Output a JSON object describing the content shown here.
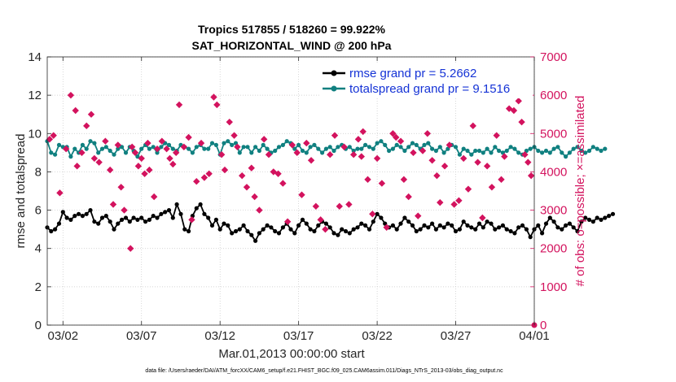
{
  "chart_data": {
    "type": "line",
    "title": "Tropics 517855 / 518260 = 99.922%",
    "subtitle": "SAT_HORIZONTAL_WIND @ 200 hPa",
    "xlabel": "Mar.01,2013 00:00:00 start",
    "ylabel": "rmse and totalspread",
    "ylabel_right": "# of obs: o=possible; ×=assimilated",
    "footnote": "data file: /Users/raeder/DAI/ATM_forcXX/CAM6_setup/f.e21.FHIST_BGC.f09_025.CAM6assim.011/Diags_NTrS_2013-03/obs_diag_output.nc",
    "xlim": [
      0,
      31
    ],
    "ylim": [
      0,
      14
    ],
    "ylim_right": [
      0,
      7000
    ],
    "x_ticks": [
      1,
      6,
      11,
      16,
      21,
      26,
      31
    ],
    "x_tick_labels": [
      "03/02",
      "03/07",
      "03/12",
      "03/17",
      "03/22",
      "03/27",
      "04/01"
    ],
    "y_ticks": [
      0,
      2,
      4,
      6,
      8,
      10,
      12,
      14
    ],
    "y_ticks_right": [
      0,
      1000,
      2000,
      3000,
      4000,
      5000,
      6000,
      7000
    ],
    "step_days": 0.25,
    "series": [
      {
        "name": "rmse grand pr = 5.2662",
        "color": "#000000",
        "axis": "left",
        "values": [
          5.1,
          4.9,
          5.0,
          5.3,
          5.9,
          5.6,
          5.5,
          5.7,
          5.8,
          5.7,
          5.8,
          6.0,
          5.4,
          5.3,
          5.6,
          5.7,
          5.4,
          5.0,
          5.3,
          5.5,
          5.6,
          5.4,
          5.6,
          5.5,
          5.6,
          5.4,
          5.5,
          5.7,
          5.6,
          5.8,
          5.9,
          6.0,
          5.6,
          6.3,
          5.8,
          5.0,
          4.9,
          5.7,
          6.1,
          6.3,
          5.8,
          5.6,
          5.2,
          5.5,
          5.0,
          5.3,
          5.2,
          4.8,
          4.9,
          5.0,
          5.2,
          4.9,
          4.7,
          4.4,
          4.8,
          5.0,
          5.2,
          5.1,
          4.9,
          4.8,
          5.1,
          5.3,
          5.0,
          4.8,
          5.2,
          5.5,
          5.3,
          5.0,
          4.9,
          5.2,
          5.4,
          5.3,
          5.1,
          4.8,
          4.7,
          5.0,
          4.9,
          4.8,
          5.0,
          5.1,
          5.3,
          5.2,
          5.0,
          5.4,
          5.8,
          5.6,
          5.3,
          5.1,
          5.2,
          5.0,
          5.3,
          5.6,
          5.4,
          5.2,
          4.9,
          5.0,
          5.2,
          5.1,
          5.3,
          5.0,
          5.2,
          5.1,
          5.3,
          5.2,
          4.9,
          5.0,
          5.4,
          5.2,
          5.1,
          5.0,
          5.3,
          5.1,
          5.4,
          5.3,
          5.0,
          5.1,
          5.2,
          5.0,
          4.9,
          4.8,
          5.1,
          5.2,
          5.0,
          4.6,
          5.0,
          5.2,
          4.8,
          5.3,
          5.6,
          5.4,
          5.1,
          5.0,
          5.2,
          5.3,
          5.1,
          4.9,
          5.4,
          5.6,
          5.5,
          5.4,
          5.6,
          5.5,
          5.6,
          5.7,
          5.8
        ]
      },
      {
        "name": "totalspread grand pr = 9.1516",
        "color": "#108080",
        "axis": "left",
        "values": [
          9.6,
          9.0,
          8.9,
          9.4,
          9.3,
          9.3,
          8.8,
          9.2,
          9.0,
          9.4,
          9.2,
          9.6,
          9.5,
          9.0,
          9.2,
          9.3,
          9.1,
          8.9,
          9.2,
          9.3,
          9.0,
          9.3,
          9.1,
          8.8,
          9.2,
          9.4,
          9.2,
          9.3,
          9.0,
          9.3,
          9.5,
          9.4,
          9.2,
          9.1,
          9.4,
          9.3,
          9.2,
          9.0,
          9.3,
          9.4,
          9.2,
          9.2,
          9.5,
          9.4,
          8.9,
          9.5,
          9.6,
          9.4,
          9.5,
          9.0,
          9.3,
          9.3,
          9.0,
          9.3,
          9.1,
          9.4,
          9.2,
          9.0,
          9.1,
          9.3,
          9.4,
          9.6,
          9.5,
          9.2,
          9.4,
          9.1,
          9.0,
          9.3,
          9.4,
          9.2,
          9.0,
          9.2,
          9.3,
          9.1,
          9.3,
          9.4,
          9.2,
          9.3,
          9.1,
          9.2,
          9.2,
          9.4,
          9.3,
          9.2,
          9.5,
          9.6,
          9.4,
          9.1,
          9.2,
          9.4,
          9.3,
          9.1,
          9.3,
          9.5,
          9.4,
          9.2,
          9.4,
          9.5,
          9.2,
          9.1,
          9.3,
          9.0,
          9.2,
          9.4,
          9.3,
          8.9,
          9.2,
          9.1,
          8.9,
          9.1,
          9.1,
          9.0,
          9.2,
          9.0,
          9.3,
          9.1,
          9.0,
          9.1,
          9.3,
          9.2,
          9.0,
          8.9,
          9.1,
          9.2,
          9.3,
          9.1,
          9.0,
          9.1,
          9.0,
          9.2,
          9.3,
          9.0,
          8.8,
          9.0,
          9.2,
          9.3,
          9.1,
          9.0,
          9.1,
          9.3,
          9.2,
          9.1,
          9.2
        ]
      }
    ],
    "obs_assimilated": {
      "name": "# assimilated (×)",
      "color": "#d3135e",
      "axis": "right",
      "points": [
        [
          0.15,
          4850
        ],
        [
          0.4,
          4950
        ],
        [
          0.8,
          3450
        ],
        [
          1.2,
          4600
        ],
        [
          1.5,
          6000
        ],
        [
          1.8,
          5600
        ],
        [
          1.9,
          4150
        ],
        [
          2.2,
          4500
        ],
        [
          2.5,
          5200
        ],
        [
          2.8,
          5500
        ],
        [
          3.0,
          4350
        ],
        [
          3.3,
          4250
        ],
        [
          3.7,
          4800
        ],
        [
          4.0,
          4050
        ],
        [
          4.2,
          3150
        ],
        [
          4.5,
          4700
        ],
        [
          4.7,
          3600
        ],
        [
          4.9,
          3000
        ],
        [
          5.3,
          2000
        ],
        [
          5.4,
          4650
        ],
        [
          5.6,
          4500
        ],
        [
          5.8,
          4150
        ],
        [
          6.0,
          4350
        ],
        [
          6.2,
          3950
        ],
        [
          6.4,
          4750
        ],
        [
          6.5,
          4050
        ],
        [
          6.8,
          3350
        ],
        [
          7.0,
          4600
        ],
        [
          7.3,
          4800
        ],
        [
          7.6,
          4600
        ],
        [
          7.8,
          4350
        ],
        [
          8.0,
          4200
        ],
        [
          8.2,
          4500
        ],
        [
          8.4,
          5750
        ],
        [
          8.7,
          4650
        ],
        [
          9.0,
          4900
        ],
        [
          9.2,
          2750
        ],
        [
          9.5,
          3750
        ],
        [
          9.8,
          4750
        ],
        [
          10.0,
          3850
        ],
        [
          10.3,
          3950
        ],
        [
          10.6,
          5950
        ],
        [
          10.8,
          5750
        ],
        [
          11.1,
          4450
        ],
        [
          11.3,
          4050
        ],
        [
          11.6,
          5300
        ],
        [
          11.9,
          4950
        ],
        [
          12.1,
          4650
        ],
        [
          12.4,
          3900
        ],
        [
          12.7,
          3600
        ],
        [
          13.0,
          4100
        ],
        [
          13.2,
          3350
        ],
        [
          13.5,
          3000
        ],
        [
          13.8,
          4850
        ],
        [
          14.1,
          4450
        ],
        [
          14.4,
          4000
        ],
        [
          14.7,
          3950
        ],
        [
          15.0,
          3700
        ],
        [
          15.3,
          2700
        ],
        [
          15.6,
          4700
        ],
        [
          15.9,
          4500
        ],
        [
          16.2,
          3400
        ],
        [
          16.5,
          4750
        ],
        [
          16.8,
          4300
        ],
        [
          17.1,
          3100
        ],
        [
          17.4,
          2750
        ],
        [
          17.7,
          2500
        ],
        [
          18.0,
          4450
        ],
        [
          18.3,
          4950
        ],
        [
          18.6,
          3100
        ],
        [
          18.9,
          4650
        ],
        [
          19.2,
          3150
        ],
        [
          19.5,
          4450
        ],
        [
          19.8,
          4850
        ],
        [
          20.0,
          4400
        ],
        [
          20.1,
          5050
        ],
        [
          20.4,
          3800
        ],
        [
          20.7,
          2900
        ],
        [
          21.0,
          4350
        ],
        [
          21.3,
          3700
        ],
        [
          21.6,
          2550
        ],
        [
          22.0,
          5000
        ],
        [
          22.2,
          4900
        ],
        [
          22.5,
          4800
        ],
        [
          22.7,
          3800
        ],
        [
          23.0,
          3350
        ],
        [
          23.3,
          4500
        ],
        [
          23.6,
          2850
        ],
        [
          23.9,
          4550
        ],
        [
          24.2,
          5000
        ],
        [
          24.5,
          4300
        ],
        [
          24.8,
          3900
        ],
        [
          25.0,
          3200
        ],
        [
          25.3,
          4150
        ],
        [
          25.6,
          4700
        ],
        [
          25.9,
          3150
        ],
        [
          26.2,
          3250
        ],
        [
          26.5,
          4350
        ],
        [
          26.8,
          3550
        ],
        [
          27.1,
          5200
        ],
        [
          27.4,
          4250
        ],
        [
          27.7,
          2800
        ],
        [
          28.0,
          4150
        ],
        [
          28.3,
          3600
        ],
        [
          28.6,
          4950
        ],
        [
          28.9,
          3800
        ],
        [
          29.1,
          4400
        ],
        [
          29.4,
          5650
        ],
        [
          29.7,
          5600
        ],
        [
          30.0,
          5850
        ],
        [
          30.2,
          5300
        ],
        [
          30.4,
          4450
        ],
        [
          30.6,
          4250
        ],
        [
          30.8,
          3900
        ],
        [
          31.0,
          0
        ]
      ]
    }
  }
}
